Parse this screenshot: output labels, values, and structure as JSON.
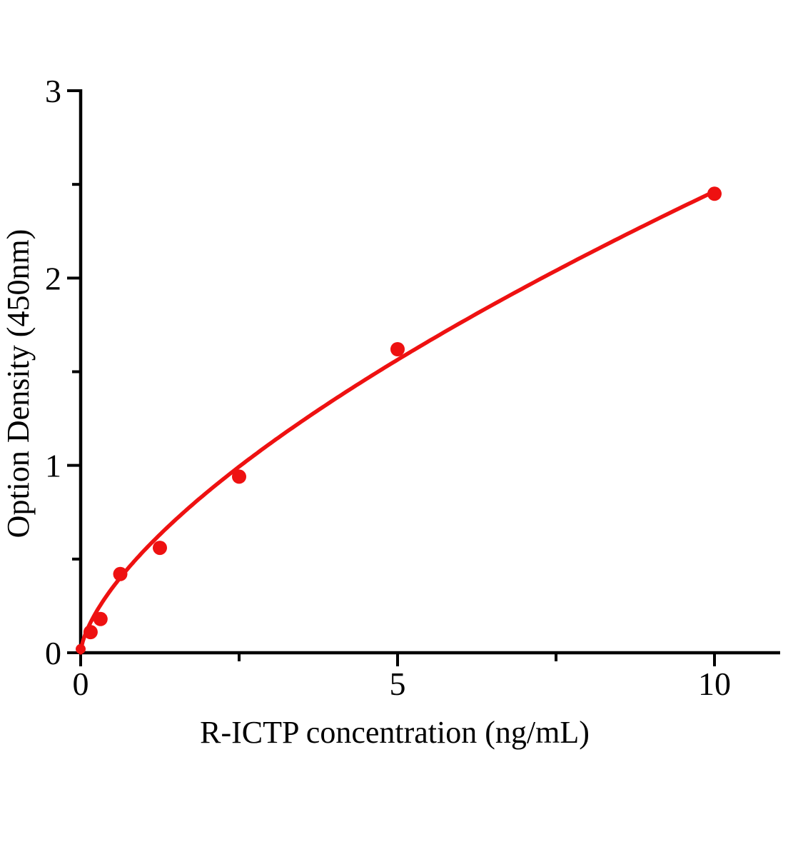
{
  "chart_data": {
    "type": "scatter",
    "title": "",
    "xlabel": "R-ICTP concentration (ng/mL)",
    "ylabel": "Option Density (450nm)",
    "xlim": [
      0,
      11.05
    ],
    "ylim": [
      0,
      3
    ],
    "x_major_ticks": [
      0,
      5,
      10
    ],
    "x_minor_ticks": [
      2.5,
      7.5
    ],
    "y_major_ticks": [
      0,
      1,
      2,
      3
    ],
    "y_minor_ticks": [
      0.5,
      1.5,
      2.5
    ],
    "x_tick_labels": [
      "0",
      "5",
      "10"
    ],
    "y_tick_labels": [
      "0",
      "1",
      "2",
      "3"
    ],
    "grid": false,
    "legend": false,
    "points": [
      {
        "x": 0,
        "y": 0.02,
        "r": 7
      },
      {
        "x": 0.156,
        "y": 0.11
      },
      {
        "x": 0.3125,
        "y": 0.18
      },
      {
        "x": 0.625,
        "y": 0.42
      },
      {
        "x": 1.25,
        "y": 0.56
      },
      {
        "x": 2.5,
        "y": 0.94
      },
      {
        "x": 5,
        "y": 1.62
      },
      {
        "x": 10,
        "y": 2.45
      }
    ],
    "fit_curve": {
      "type": "power",
      "a": 0.545,
      "b": 0.655,
      "x_start": 0,
      "x_end": 10
    },
    "series_color": "#ee1111",
    "axis_color": "#000000",
    "background_color": "#ffffff"
  }
}
